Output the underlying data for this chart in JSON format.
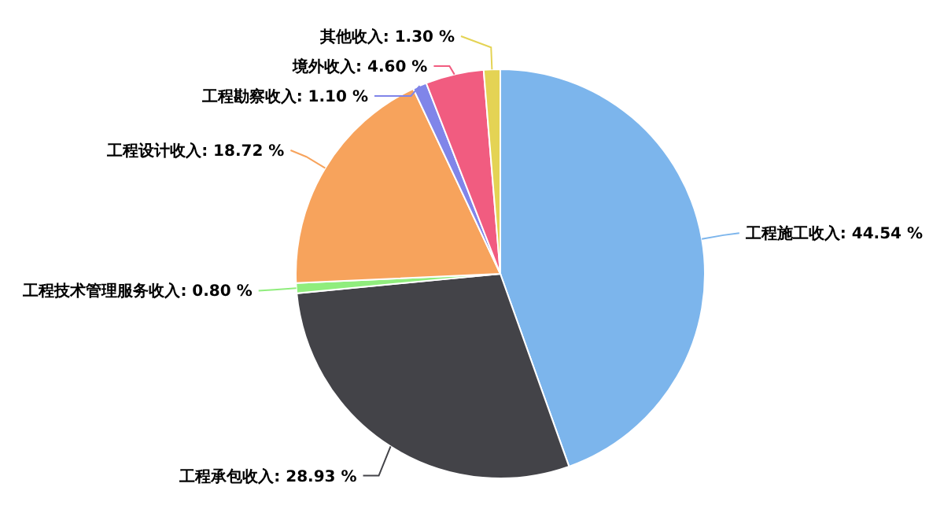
{
  "chart_data": {
    "type": "pie",
    "categories": [
      "工程施工收入",
      "工程承包收入",
      "工程技术管理服务收入",
      "工程设计收入",
      "工程勘察收入",
      "境外收入",
      "其他收入"
    ],
    "values": [
      44.54,
      28.93,
      0.8,
      18.72,
      1.1,
      4.6,
      1.3
    ],
    "value_labels": [
      "44.54 %",
      "28.93 %",
      "0.80 %",
      "18.72 %",
      "1.10 %",
      "4.60 %",
      "1.30 %"
    ],
    "colors": [
      "#7cb5ec",
      "#434348",
      "#90ed7d",
      "#f7a35c",
      "#8085e9",
      "#f15c80",
      "#e4d354"
    ]
  }
}
